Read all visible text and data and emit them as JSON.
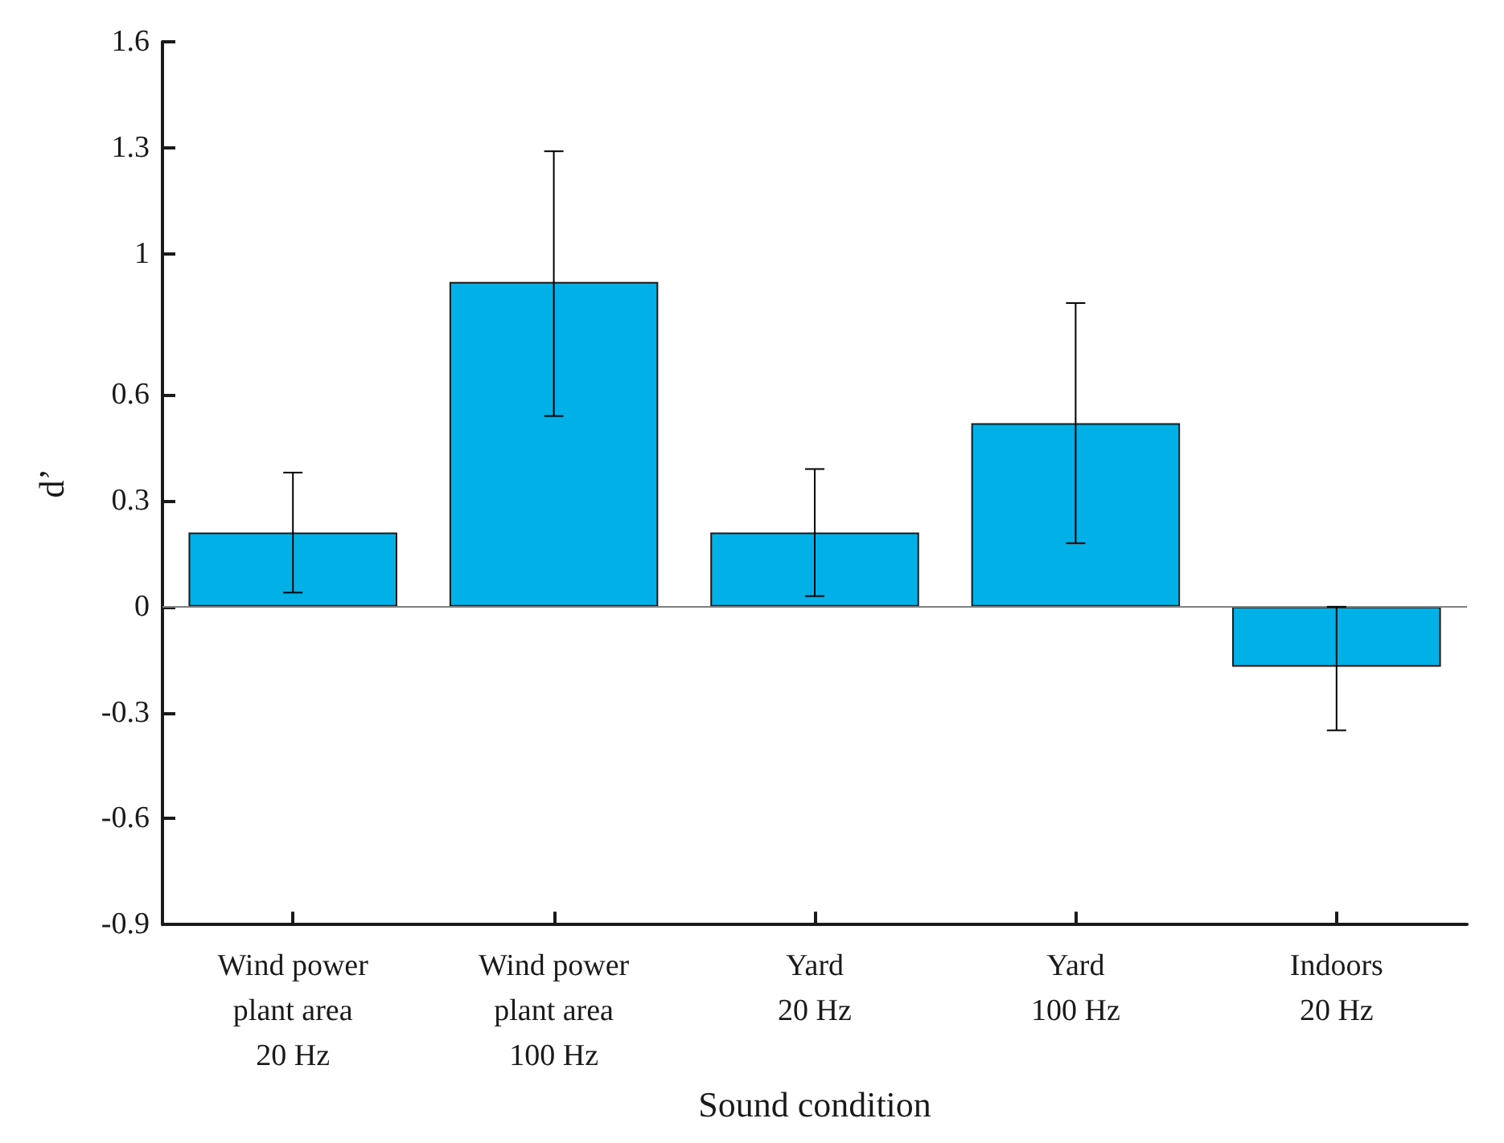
{
  "chart_data": {
    "type": "bar",
    "xlabel": "Sound condition",
    "ylabel": "d’",
    "categories": [
      "Wind power\nplant area\n20 Hz",
      "Wind power\nplant area\n100 Hz",
      "Yard\n20 Hz",
      "Yard\n100 Hz",
      "Indoors\n20 Hz"
    ],
    "values": [
      0.21,
      0.92,
      0.21,
      0.52,
      -0.17
    ],
    "errors": [
      [
        0.04,
        0.38
      ],
      [
        0.54,
        1.29
      ],
      [
        0.03,
        0.39
      ],
      [
        0.18,
        0.86
      ],
      [
        -0.35,
        0.0
      ]
    ],
    "color": "#00b0e6",
    "ylim": [
      -0.9,
      1.6
    ],
    "yticks": [
      -0.9,
      -0.6,
      -0.3,
      0,
      0.3,
      0.6,
      1,
      1.3,
      1.6
    ],
    "ref_lines": [
      {
        "axis": "y",
        "value": 0,
        "color": "#808080"
      }
    ]
  }
}
